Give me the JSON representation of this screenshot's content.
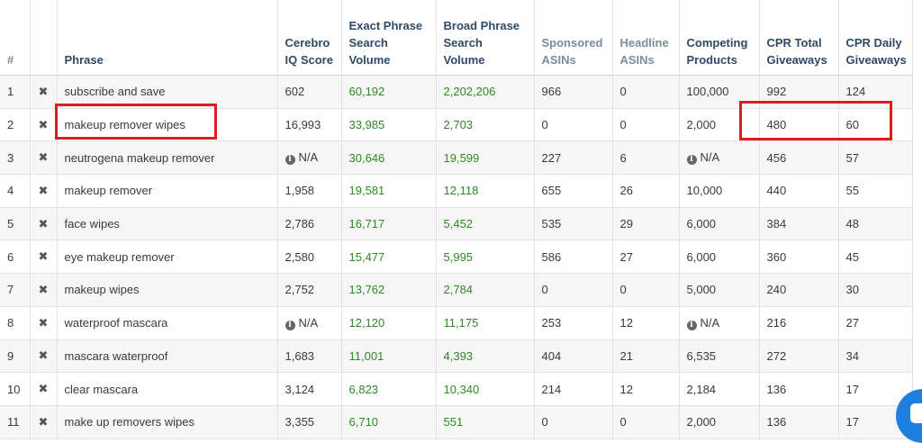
{
  "headers": {
    "num": "#",
    "x": "",
    "phrase": "Phrase",
    "iq": "Cerebro IQ Score",
    "exact": "Exact Phrase Search Volume",
    "broad": "Broad Phrase Search Volume",
    "sponsored": "Sponsored ASINs",
    "headline": "Headline ASINs",
    "competing": "Competing Products",
    "cpr_total": "CPR Total Giveaways",
    "cpr_daily": "CPR Daily Giveaways"
  },
  "na_text": "N/A",
  "rows": [
    {
      "num": "1",
      "phrase": "subscribe and save",
      "iq": "602",
      "exact": "60,192",
      "broad": "2,202,206",
      "sponsored": "966",
      "headline": "0",
      "competing": "100,000",
      "cpr_total": "992",
      "cpr_daily": "124"
    },
    {
      "num": "2",
      "phrase": "makeup remover wipes",
      "iq": "16,993",
      "exact": "33,985",
      "broad": "2,703",
      "sponsored": "0",
      "headline": "0",
      "competing": "2,000",
      "cpr_total": "480",
      "cpr_daily": "60"
    },
    {
      "num": "3",
      "phrase": "neutrogena makeup remover",
      "iq": "N/A",
      "exact": "30,646",
      "broad": "19,599",
      "sponsored": "227",
      "headline": "6",
      "competing": "N/A",
      "cpr_total": "456",
      "cpr_daily": "57"
    },
    {
      "num": "4",
      "phrase": "makeup remover",
      "iq": "1,958",
      "exact": "19,581",
      "broad": "12,118",
      "sponsored": "655",
      "headline": "26",
      "competing": "10,000",
      "cpr_total": "440",
      "cpr_daily": "55"
    },
    {
      "num": "5",
      "phrase": "face wipes",
      "iq": "2,786",
      "exact": "16,717",
      "broad": "5,452",
      "sponsored": "535",
      "headline": "29",
      "competing": "6,000",
      "cpr_total": "384",
      "cpr_daily": "48"
    },
    {
      "num": "6",
      "phrase": "eye makeup remover",
      "iq": "2,580",
      "exact": "15,477",
      "broad": "5,995",
      "sponsored": "586",
      "headline": "27",
      "competing": "6,000",
      "cpr_total": "360",
      "cpr_daily": "45"
    },
    {
      "num": "7",
      "phrase": "makeup wipes",
      "iq": "2,752",
      "exact": "13,762",
      "broad": "2,784",
      "sponsored": "0",
      "headline": "0",
      "competing": "5,000",
      "cpr_total": "240",
      "cpr_daily": "30"
    },
    {
      "num": "8",
      "phrase": "waterproof mascara",
      "iq": "N/A",
      "exact": "12,120",
      "broad": "11,175",
      "sponsored": "253",
      "headline": "12",
      "competing": "N/A",
      "cpr_total": "216",
      "cpr_daily": "27"
    },
    {
      "num": "9",
      "phrase": "mascara waterproof",
      "iq": "1,683",
      "exact": "11,001",
      "broad": "4,393",
      "sponsored": "404",
      "headline": "21",
      "competing": "6,535",
      "cpr_total": "272",
      "cpr_daily": "34"
    },
    {
      "num": "10",
      "phrase": "clear mascara",
      "iq": "3,124",
      "exact": "6,823",
      "broad": "10,340",
      "sponsored": "214",
      "headline": "12",
      "competing": "2,184",
      "cpr_total": "136",
      "cpr_daily": "17"
    },
    {
      "num": "11",
      "phrase": "make up removers wipes",
      "iq": "3,355",
      "exact": "6,710",
      "broad": "551",
      "sponsored": "0",
      "headline": "0",
      "competing": "2,000",
      "cpr_total": "136",
      "cpr_daily": "17"
    }
  ],
  "icons": {
    "delete": "close-icon",
    "info": "info-icon",
    "chat": "chat-icon"
  },
  "colors": {
    "header_text": "#2e4a66",
    "volume_green": "#2d8a24",
    "highlight_red": "#e01b1b",
    "chat_blue": "#1f7fe0"
  }
}
